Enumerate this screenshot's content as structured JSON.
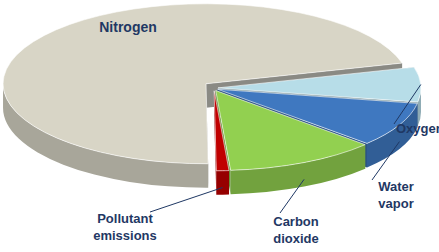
{
  "chart_data": {
    "type": "pie",
    "categories": [
      "Nitrogen",
      "Oxygen",
      "Water vapor",
      "Carbon dioxide",
      "Pollutant emissions"
    ],
    "values": [
      71,
      7,
      9,
      12,
      1
    ],
    "colors": [
      "#d8d5c6",
      "#b7dde8",
      "#3f78c0",
      "#92d050",
      "#c00000"
    ]
  }
}
